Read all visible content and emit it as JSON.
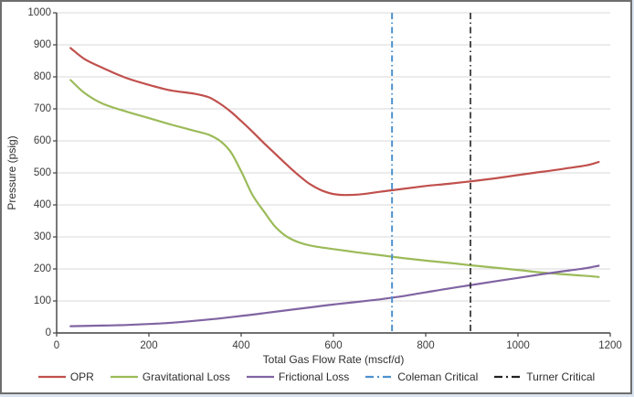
{
  "chart_data": {
    "type": "line",
    "title": "",
    "xlabel": "Total Gas Flow Rate (mscf/d)",
    "ylabel": "Pressure (psig)",
    "xlim": [
      0,
      1200
    ],
    "ylim": [
      0,
      1000
    ],
    "x_ticks": [
      0,
      200,
      400,
      600,
      800,
      1000,
      1200
    ],
    "y_ticks": [
      0,
      100,
      200,
      300,
      400,
      500,
      600,
      700,
      800,
      900,
      1000
    ],
    "grid": "horizontal-only",
    "legend_position": "bottom",
    "colors": {
      "gridline": "#d9d9d9",
      "axis": "#404040",
      "text": "#3a3a3a",
      "frame_border": "#6e6e6e"
    },
    "series": [
      {
        "name": "OPR",
        "kind": "curve",
        "color": "#c0504d",
        "dash": "solid",
        "x": [
          30,
          60,
          100,
          150,
          200,
          250,
          300,
          330,
          350,
          375,
          400,
          425,
          450,
          475,
          500,
          525,
          550,
          575,
          600,
          625,
          650,
          700,
          750,
          800,
          850,
          900,
          950,
          1000,
          1050,
          1100,
          1150,
          1175
        ],
        "y": [
          890,
          856,
          828,
          797,
          775,
          757,
          747,
          736,
          720,
          694,
          662,
          628,
          592,
          558,
          524,
          492,
          464,
          445,
          434,
          431,
          432,
          441,
          450,
          459,
          466,
          474,
          483,
          493,
          503,
          513,
          524,
          534
        ]
      },
      {
        "name": "Gravitational Loss",
        "kind": "curve",
        "color": "#9bbb59",
        "dash": "solid",
        "x": [
          30,
          60,
          100,
          150,
          200,
          250,
          300,
          330,
          350,
          375,
          400,
          425,
          450,
          475,
          500,
          525,
          550,
          575,
          600,
          650,
          700,
          750,
          800,
          850,
          900,
          950,
          1000,
          1050,
          1100,
          1150,
          1175
        ],
        "y": [
          790,
          750,
          716,
          692,
          671,
          650,
          631,
          619,
          604,
          570,
          505,
          430,
          378,
          330,
          300,
          283,
          273,
          267,
          262,
          252,
          243,
          234,
          226,
          219,
          211,
          204,
          197,
          189,
          183,
          178,
          175
        ]
      },
      {
        "name": "Frictional Loss",
        "kind": "curve",
        "color": "#8064a2",
        "dash": "solid",
        "x": [
          30,
          100,
          150,
          200,
          250,
          300,
          350,
          400,
          450,
          500,
          550,
          600,
          650,
          700,
          750,
          800,
          850,
          900,
          950,
          1000,
          1050,
          1100,
          1150,
          1175
        ],
        "y": [
          21,
          23,
          25,
          28,
          32,
          38,
          45,
          53,
          62,
          71,
          80,
          89,
          97,
          105,
          115,
          127,
          139,
          150,
          161,
          172,
          183,
          193,
          203,
          210
        ]
      },
      {
        "name": "Coleman Critical",
        "kind": "vline",
        "color": "#4e91ce",
        "dash": "dashdot",
        "x_value": 727
      },
      {
        "name": "Turner Critical",
        "kind": "vline",
        "color": "#222222",
        "dash": "dashdot",
        "x_value": 897
      }
    ]
  }
}
